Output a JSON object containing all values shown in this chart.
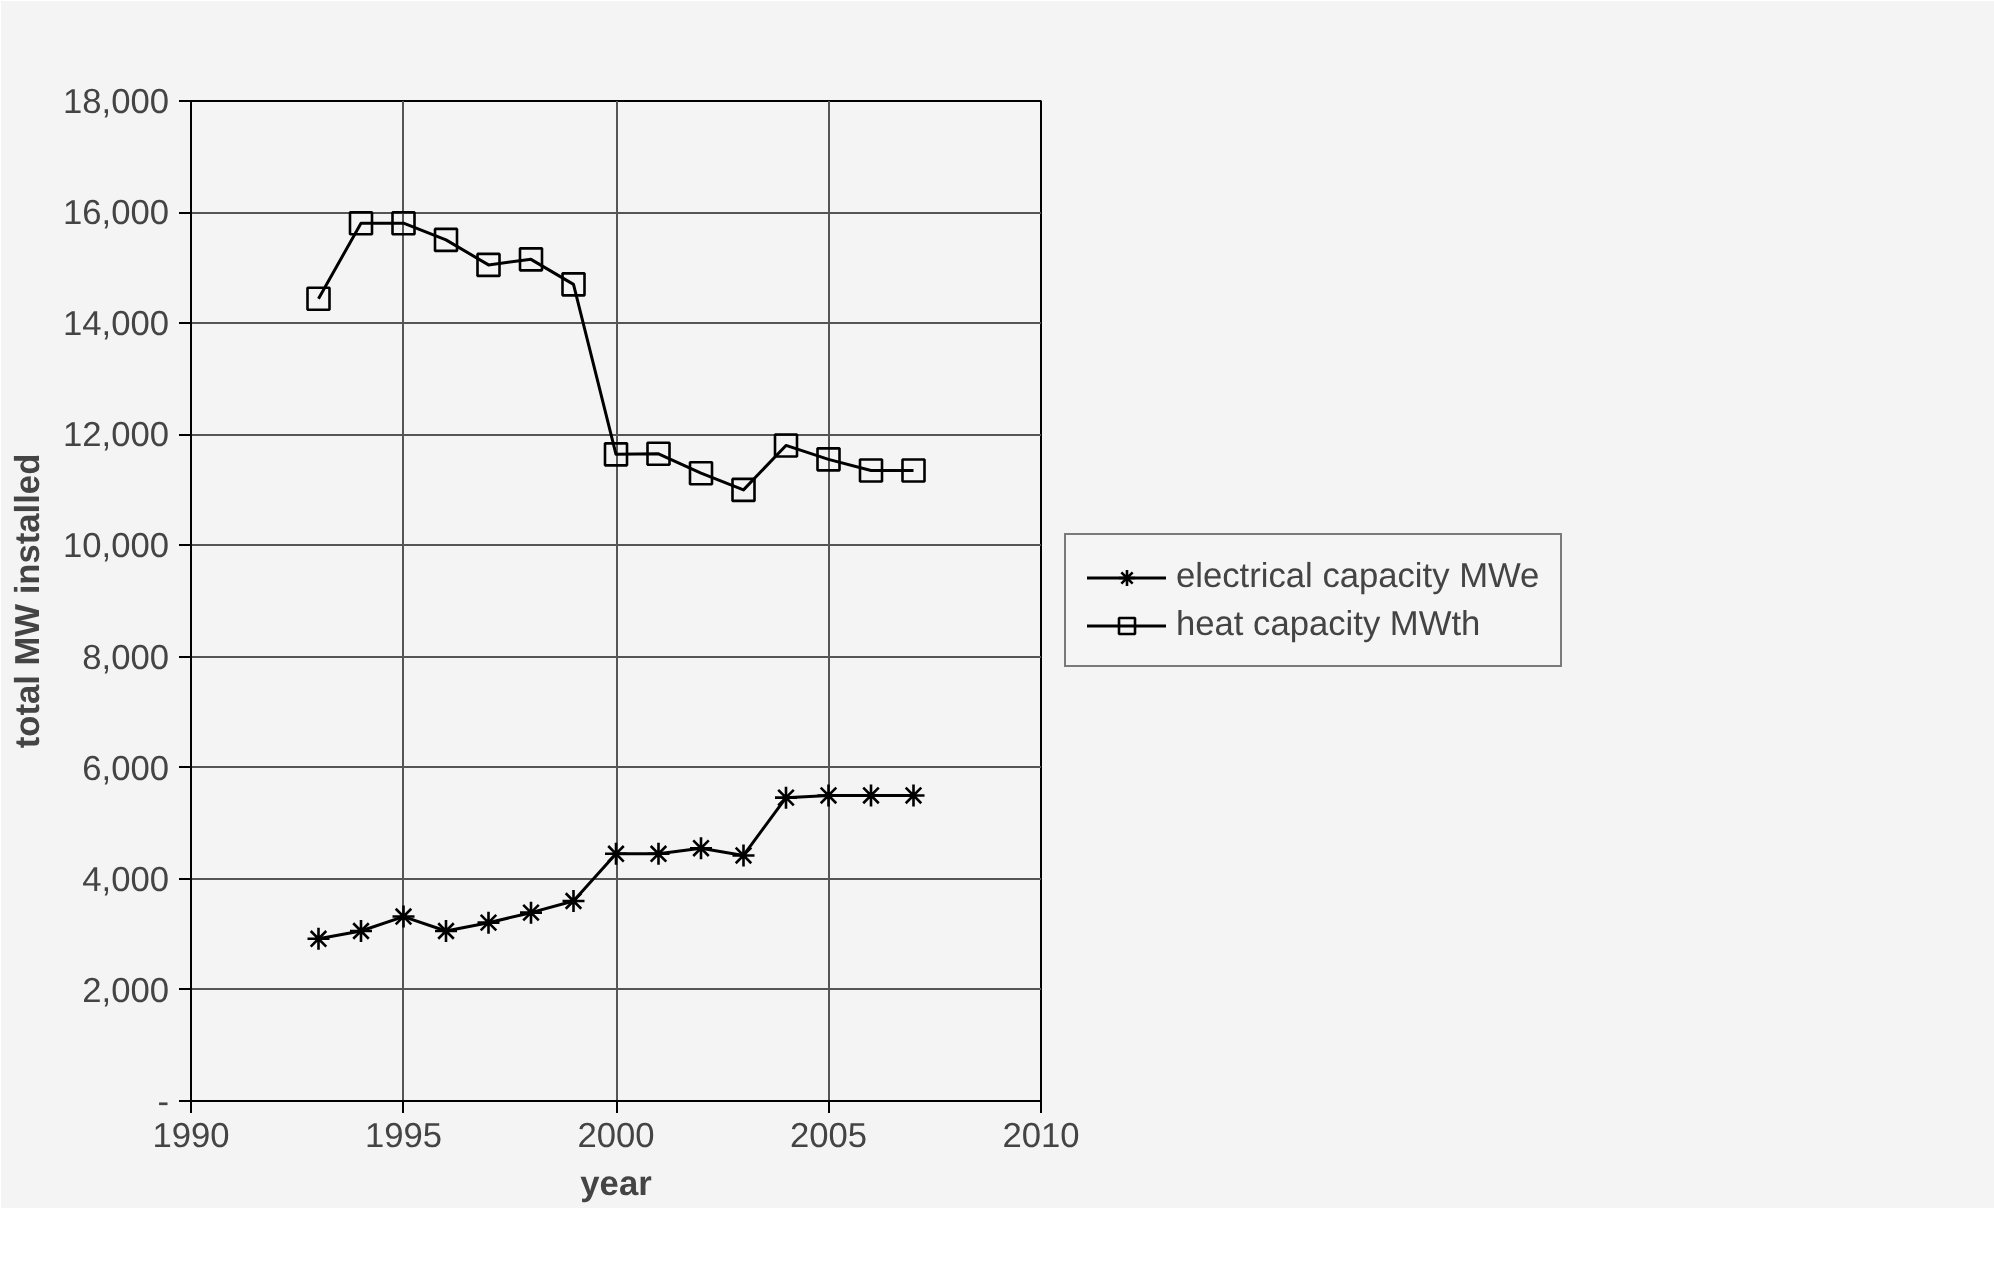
{
  "chart_data": {
    "type": "line",
    "xlabel": "year",
    "ylabel": "total MW installed",
    "x": [
      1993,
      1994,
      1995,
      1996,
      1997,
      1998,
      1999,
      2000,
      2001,
      2002,
      2003,
      2004,
      2005,
      2006,
      2007
    ],
    "series": [
      {
        "name": "electrical capacity MWe",
        "color": "#000000",
        "marker": "cross",
        "values": [
          2920,
          3060,
          3320,
          3060,
          3210,
          3390,
          3600,
          4450,
          4450,
          4550,
          4420,
          5460,
          5500,
          5500,
          5500
        ]
      },
      {
        "name": "heat capacity MWth",
        "color": "#000000",
        "marker": "square",
        "values": [
          14440,
          15800,
          15800,
          15500,
          15050,
          15150,
          14700,
          11640,
          11650,
          11300,
          11000,
          11800,
          11550,
          11350,
          11350
        ]
      }
    ],
    "xlim": [
      1990,
      2010
    ],
    "xticks": [
      1990,
      1995,
      2000,
      2005,
      2010
    ],
    "ylim": [
      0,
      18000
    ],
    "yticks": [
      {
        "value": 0,
        "label": "-"
      },
      {
        "value": 2000,
        "label": "2,000"
      },
      {
        "value": 4000,
        "label": "4,000"
      },
      {
        "value": 6000,
        "label": "6,000"
      },
      {
        "value": 8000,
        "label": "8,000"
      },
      {
        "value": 10000,
        "label": "10,000"
      },
      {
        "value": 12000,
        "label": "12,000"
      },
      {
        "value": 14000,
        "label": "14,000"
      },
      {
        "value": 16000,
        "label": "16,000"
      },
      {
        "value": 18000,
        "label": "18,000"
      }
    ],
    "grid": true,
    "legend": "right",
    "line_style": "solid"
  }
}
